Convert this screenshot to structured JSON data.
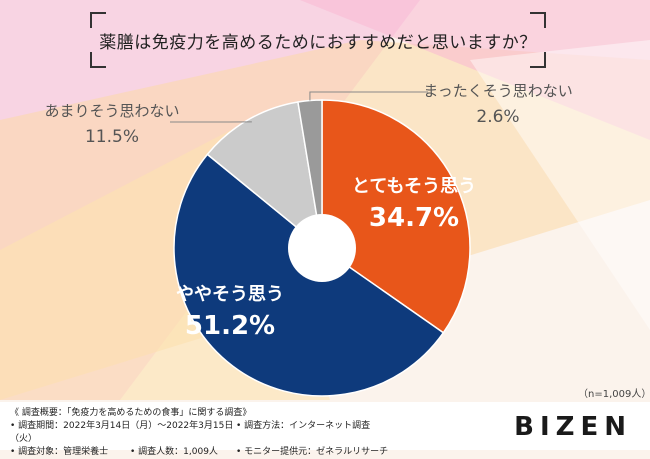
{
  "title": "薬膳は免疫力を高めるためにおすすめだと思いますか？",
  "n_note": "（n=1,009人）",
  "chart_data": {
    "type": "pie",
    "donut": true,
    "title": "薬膳は免疫力を高めるためにおすすめだと思いますか？",
    "slices": [
      {
        "label": "とてもそう思う",
        "value": 34.7,
        "display": "34.7%",
        "color": "#e8561a"
      },
      {
        "label": "ややそう思う",
        "value": 51.2,
        "display": "51.2%",
        "color": "#0e3a7c"
      },
      {
        "label": "あまりそう思わない",
        "value": 11.5,
        "display": "11.5%",
        "color": "#cbcbcb"
      },
      {
        "label": "まったくそう思わない",
        "value": 2.6,
        "display": "2.6%",
        "color": "#9a9a9a"
      }
    ]
  },
  "survey": {
    "overview": "《 調査概要：「免疫力を高めるための食事」に関する調査》",
    "period": "• 調査期間：2022年3月14日（月）～2022年3月15日（火）",
    "method": "• 調査方法：インターネット調査",
    "target": "• 調査対象：管理栄養士",
    "count": "• 調査人数：1,009人",
    "monitor": "• モニター提供元：ゼネラルリサーチ"
  },
  "brand": "BIZEN"
}
